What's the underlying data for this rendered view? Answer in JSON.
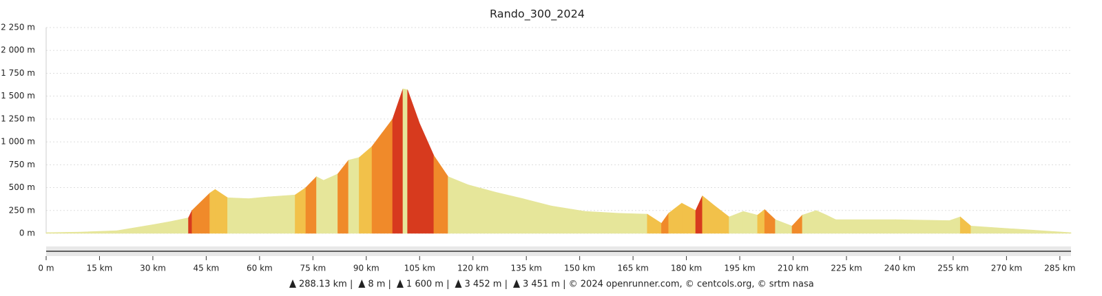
{
  "chart_data": {
    "type": "area",
    "title": "Rando_300_2024",
    "color": "#e6e69a",
    "x": [
      0,
      10,
      20,
      30,
      35,
      40,
      41,
      46,
      47.5,
      51,
      57,
      62.5,
      70,
      73,
      76,
      78,
      82,
      85,
      88,
      91.6,
      94.5,
      97.4,
      100.3,
      101.6,
      105,
      109,
      113,
      118.7,
      126.4,
      134,
      142,
      151.6,
      161,
      169,
      173,
      175,
      178.7,
      182.6,
      184.5,
      188,
      192,
      196,
      200,
      202,
      205,
      209.7,
      212.6,
      216.5,
      219.4,
      222,
      238.8,
      254,
      257,
      260,
      271.7,
      288.13
    ],
    "values": [
      8,
      15,
      30,
      95,
      130,
      170,
      250,
      440,
      480,
      390,
      380,
      400,
      420,
      500,
      620,
      580,
      650,
      800,
      830,
      950,
      1100,
      1250,
      1580,
      1570,
      1200,
      850,
      620,
      530,
      450,
      380,
      300,
      240,
      220,
      210,
      110,
      220,
      330,
      250,
      410,
      300,
      180,
      240,
      200,
      260,
      150,
      80,
      200,
      250,
      200,
      150,
      150,
      140,
      180,
      80,
      50,
      8
    ],
    "xlim": [
      0,
      288.13
    ],
    "ylim": [
      0,
      2250
    ],
    "xticks": [
      {
        "value": 0,
        "label": "0 m"
      },
      {
        "value": 15,
        "label": "15 km"
      },
      {
        "value": 30,
        "label": "30 km"
      },
      {
        "value": 45,
        "label": "45 km"
      },
      {
        "value": 60,
        "label": "60 km"
      },
      {
        "value": 75,
        "label": "75 km"
      },
      {
        "value": 90,
        "label": "90 km"
      },
      {
        "value": 105,
        "label": "105 km"
      },
      {
        "value": 120,
        "label": "120 km"
      },
      {
        "value": 135,
        "label": "135 km"
      },
      {
        "value": 150,
        "label": "150 km"
      },
      {
        "value": 165,
        "label": "165 km"
      },
      {
        "value": 180,
        "label": "180 km"
      },
      {
        "value": 195,
        "label": "195 km"
      },
      {
        "value": 210,
        "label": "210 km"
      },
      {
        "value": 225,
        "label": "225 km"
      },
      {
        "value": 240,
        "label": "240 km"
      },
      {
        "value": 255,
        "label": "255 km"
      },
      {
        "value": 270,
        "label": "270 km"
      },
      {
        "value": 285,
        "label": "285 km"
      }
    ],
    "yticks": [
      {
        "value": 0,
        "label": "0 m"
      },
      {
        "value": 250,
        "label": "250 m"
      },
      {
        "value": 500,
        "label": "500 m"
      },
      {
        "value": 750,
        "label": "750 m"
      },
      {
        "value": 1000,
        "label": "1 000 m"
      },
      {
        "value": 1250,
        "label": "1 250 m"
      },
      {
        "value": 1500,
        "label": "1 500 m"
      },
      {
        "value": 1750,
        "label": "1 750 m"
      },
      {
        "value": 2000,
        "label": "2 000 m"
      },
      {
        "value": 2250,
        "label": "2 250 m"
      }
    ],
    "grid": true,
    "footer": {
      "stats": [
        "288.13 km |",
        "8 m |",
        "1 600 m |",
        "3 452 m |",
        "3 451 m | © 2024 openrunner.com, © centcols.org, © srtm nasa"
      ]
    }
  }
}
